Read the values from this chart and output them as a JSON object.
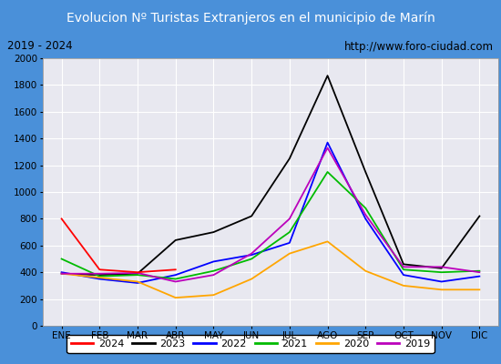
{
  "title": "Evolucion Nº Turistas Extranjeros en el municipio de Marín",
  "subtitle_left": "2019 - 2024",
  "subtitle_right": "http://www.foro-ciudad.com",
  "months": [
    "ENE",
    "FEB",
    "MAR",
    "ABR",
    "MAY",
    "JUN",
    "JUL",
    "AGO",
    "SEP",
    "OCT",
    "NOV",
    "DIC"
  ],
  "series": {
    "2024": [
      800,
      420,
      400,
      420,
      null,
      null,
      null,
      null,
      null,
      null,
      null,
      null
    ],
    "2023": [
      390,
      380,
      390,
      640,
      700,
      820,
      1250,
      1870,
      1150,
      460,
      430,
      820
    ],
    "2022": [
      400,
      350,
      320,
      380,
      480,
      530,
      620,
      1370,
      800,
      380,
      330,
      370
    ],
    "2021": [
      500,
      370,
      380,
      350,
      410,
      500,
      700,
      1150,
      880,
      420,
      400,
      410
    ],
    "2020": [
      390,
      360,
      330,
      210,
      230,
      350,
      540,
      630,
      410,
      300,
      270,
      270
    ],
    "2019": [
      390,
      390,
      395,
      330,
      380,
      540,
      800,
      1330,
      830,
      440,
      440,
      400
    ]
  },
  "colors": {
    "2024": "#ff0000",
    "2023": "#000000",
    "2022": "#0000ff",
    "2021": "#00bb00",
    "2020": "#ffa500",
    "2019": "#bb00bb"
  },
  "ylim": [
    0,
    2000
  ],
  "yticks": [
    0,
    200,
    400,
    600,
    800,
    1000,
    1200,
    1400,
    1600,
    1800,
    2000
  ],
  "title_bg_color": "#4a90d9",
  "title_text_color": "#ffffff",
  "plot_bg_color": "#e8e8f0",
  "outer_bg_color": "#4a90d9",
  "grid_color": "#ffffff",
  "subtitle_box_bg": "#ffffff",
  "subtitle_text_color": "#000000",
  "legend_years": [
    "2024",
    "2023",
    "2022",
    "2021",
    "2020",
    "2019"
  ]
}
